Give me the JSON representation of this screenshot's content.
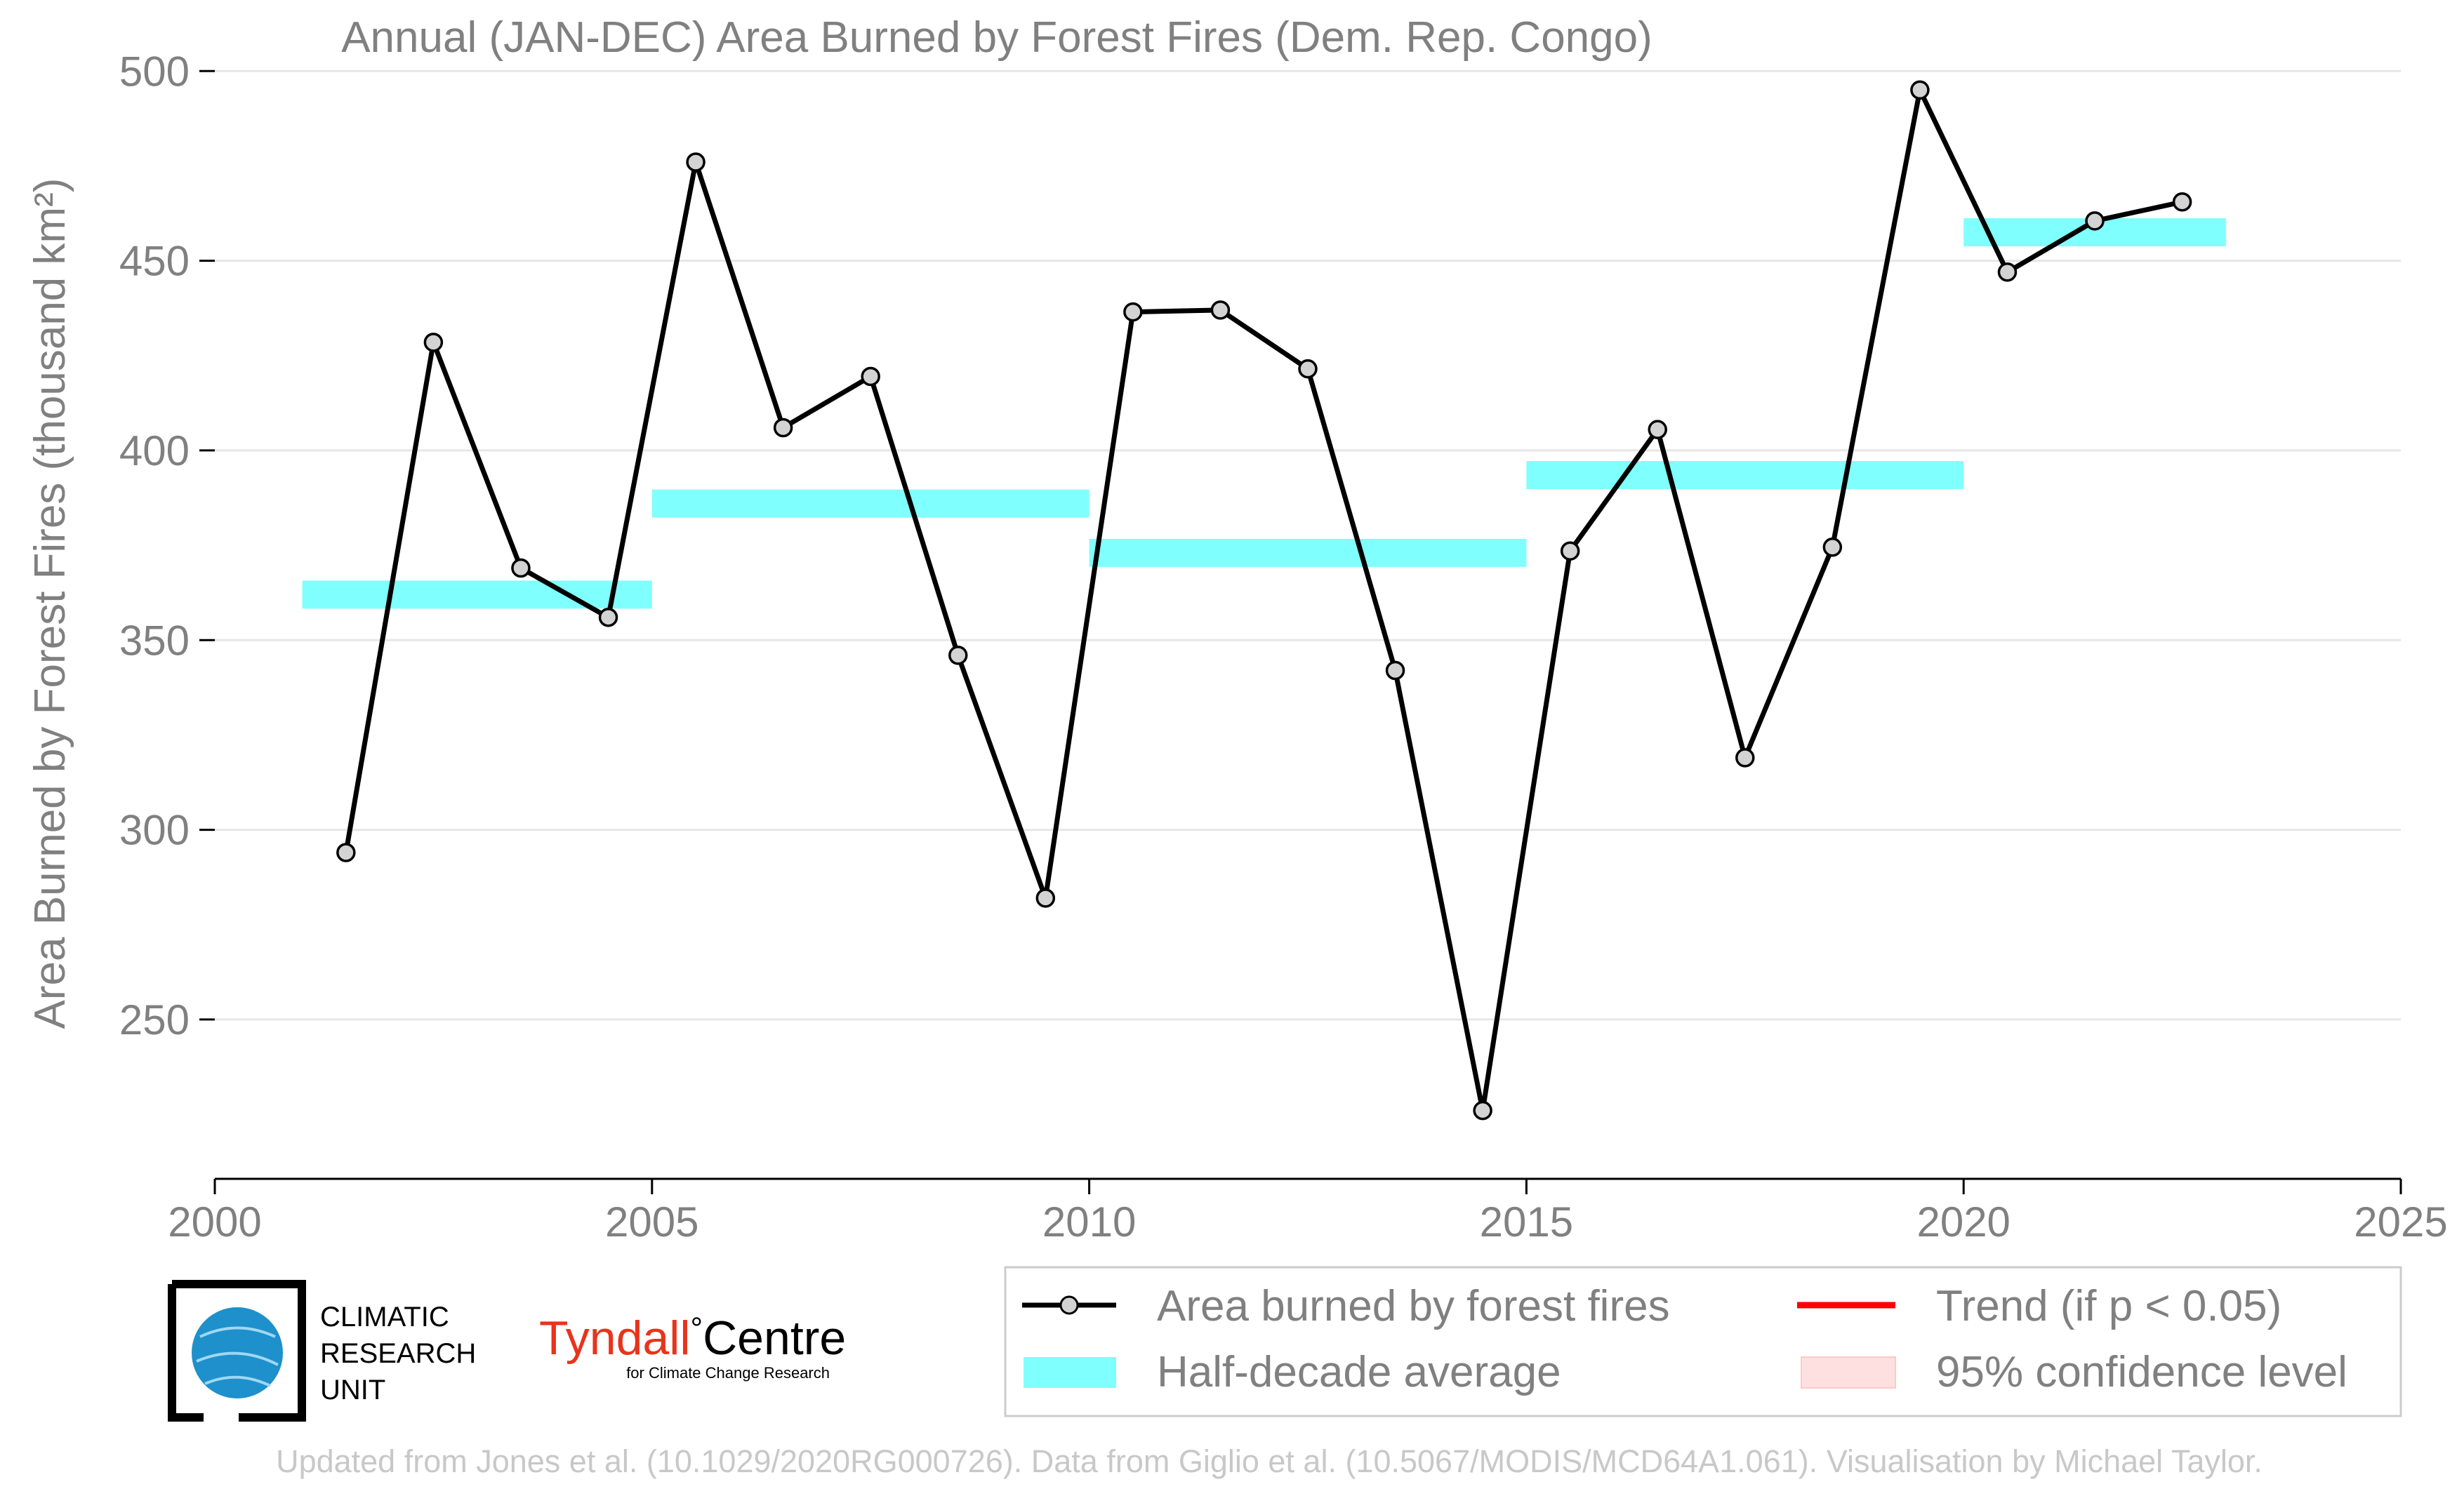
{
  "chart_data": {
    "type": "line",
    "title": "Annual (JAN-DEC) Area Burned by Forest Fires (Dem. Rep. Congo)",
    "ylabel": "Area Burned by Forest Fires (thousand km²)",
    "xlabel": "",
    "xlim": [
      2000,
      2025
    ],
    "ylim": [
      208,
      508
    ],
    "x_ticks": [
      2000,
      2005,
      2010,
      2015,
      2020,
      2025
    ],
    "y_ticks": [
      250,
      300,
      350,
      400,
      450,
      500
    ],
    "grid": "horizontal",
    "series": [
      {
        "name": "Area burned by forest fires",
        "color": "#000000",
        "marker_fill": "#d3d3d3",
        "x": [
          2001.5,
          2002.5,
          2003.5,
          2004.5,
          2005.5,
          2006.5,
          2007.5,
          2008.5,
          2009.5,
          2010.5,
          2011.5,
          2012.5,
          2013.5,
          2014.5,
          2015.5,
          2016.5,
          2017.5,
          2018.5,
          2019.5,
          2020.5,
          2021.5,
          2022.5
        ],
        "values": [
          294,
          428.5,
          369,
          356,
          476,
          406,
          419.5,
          346,
          282,
          436.5,
          437,
          421.5,
          342,
          226,
          373.5,
          405.5,
          319,
          374.5,
          495,
          447,
          460.5,
          465.5
        ]
      }
    ],
    "half_decade_average": {
      "name": "Half-decade average",
      "color": "#80ffff",
      "segments": [
        {
          "x0": 2001,
          "x1": 2005,
          "value": 362
        },
        {
          "x0": 2005,
          "x1": 2010,
          "value": 386
        },
        {
          "x0": 2010,
          "x1": 2015,
          "value": 373
        },
        {
          "x0": 2015,
          "x1": 2020,
          "value": 393.5
        },
        {
          "x0": 2020,
          "x1": 2023,
          "value": 457.5
        }
      ]
    },
    "legend": {
      "placement": "bottom-right",
      "items": [
        {
          "label": "Area burned by forest fires",
          "kind": "line-marker",
          "color": "#000000"
        },
        {
          "label": "Trend (if p < 0.05)",
          "kind": "line",
          "color": "#ff0000"
        },
        {
          "label": "Half-decade average",
          "kind": "band",
          "color": "#80ffff"
        },
        {
          "label": "95% confidence level",
          "kind": "band",
          "color": "#ffe0e0"
        }
      ]
    }
  },
  "logos": {
    "cru": [
      "CLIMATIC",
      "RESEARCH",
      "UNIT"
    ],
    "tyndall_main": "Tyndall",
    "tyndall_degree": "°",
    "tyndall_centre": "Centre",
    "tyndall_sub": "for Climate Change Research"
  },
  "footer": "Updated from Jones et al. (10.1029/2020RG000726). Data from Giglio et al. (10.5067/MODIS/MCD64A1.061). Visualisation by Michael Taylor."
}
